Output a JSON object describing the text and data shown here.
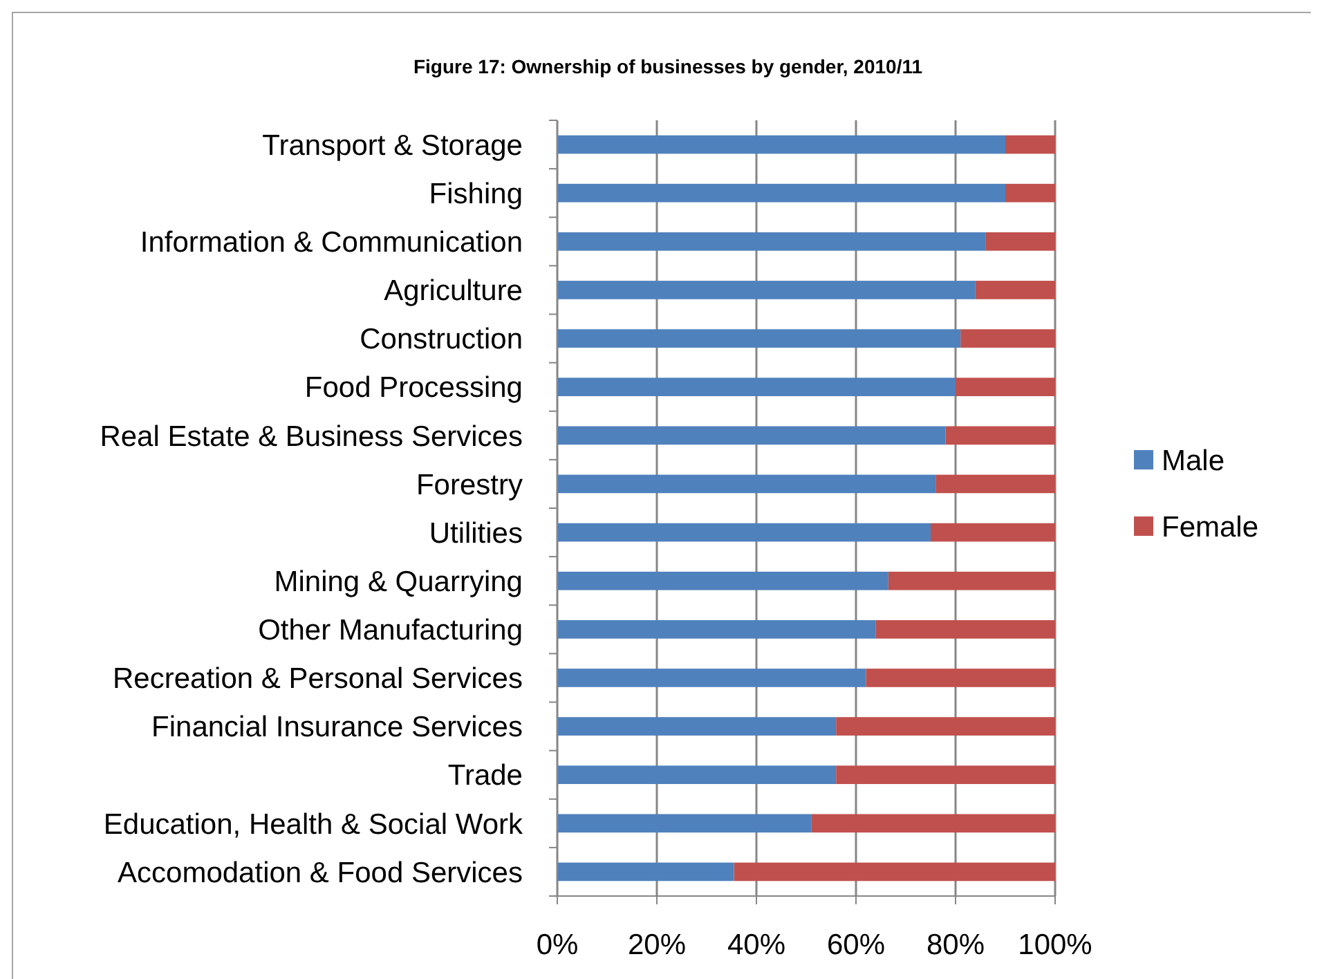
{
  "chart_data": {
    "type": "bar",
    "orientation": "horizontal",
    "stacked": true,
    "title": "Figure 17: Ownership of businesses by gender, 2010/11",
    "categories": [
      "Transport & Storage",
      "Fishing",
      "Information & Communication",
      "Agriculture",
      "Construction",
      "Food Processing",
      "Real Estate & Business Services",
      "Forestry",
      "Utilities",
      "Mining & Quarrying",
      "Other Manufacturing",
      "Recreation & Personal Services",
      "Financial Insurance Services",
      "Trade",
      "Education, Health & Social Work",
      "Accomodation & Food Services"
    ],
    "series": [
      {
        "name": "Male",
        "color": "#4f81bd",
        "values": [
          90,
          90,
          86,
          84,
          81,
          80,
          78,
          76,
          75,
          66.5,
          64,
          62,
          56,
          56,
          51,
          35.5
        ]
      },
      {
        "name": "Female",
        "color": "#c0504d",
        "values": [
          10,
          10,
          14,
          16,
          19,
          20,
          22,
          24,
          25,
          33.5,
          36,
          38,
          44,
          44,
          49,
          64.5
        ]
      }
    ],
    "xlim": [
      0,
      100
    ],
    "xticks": [
      {
        "value": 0,
        "label": "0%"
      },
      {
        "value": 20,
        "label": "20%"
      },
      {
        "value": 40,
        "label": "40%"
      },
      {
        "value": 60,
        "label": "60%"
      },
      {
        "value": 80,
        "label": "80%"
      },
      {
        "value": 100,
        "label": "100%"
      }
    ],
    "grid": "x",
    "legend": "right"
  }
}
